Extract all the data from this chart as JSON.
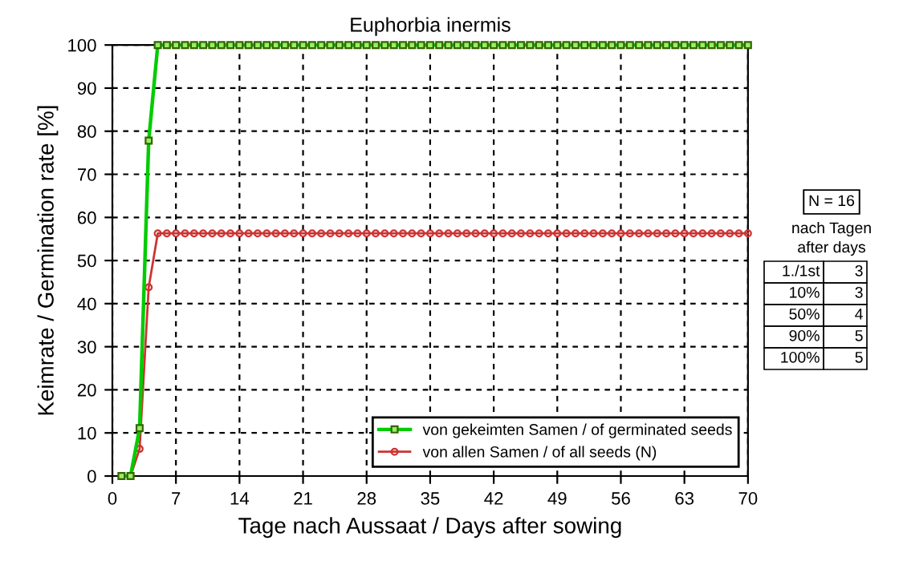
{
  "chart_data": {
    "type": "line",
    "title": "Euphorbia inermis",
    "xlabel": "Tage nach Aussaat / Days after sowing",
    "ylabel": "Keimrate / Germination rate [%]",
    "x": [
      1,
      2,
      3,
      4,
      5,
      6,
      7,
      8,
      9,
      10,
      11,
      12,
      13,
      14,
      15,
      16,
      17,
      18,
      19,
      20,
      21,
      22,
      23,
      24,
      25,
      26,
      27,
      28,
      29,
      30,
      31,
      32,
      33,
      34,
      35,
      36,
      37,
      38,
      39,
      40,
      41,
      42,
      43,
      44,
      45,
      46,
      47,
      48,
      49,
      50,
      51,
      52,
      53,
      54,
      55,
      56,
      57,
      58,
      59,
      60,
      61,
      62,
      63,
      64,
      65,
      66,
      67,
      68,
      69,
      70
    ],
    "series": [
      {
        "name": "von gekeimten Samen / of germinated seeds",
        "color": "#00cc00",
        "marker": "square",
        "values": [
          0,
          0,
          11.1,
          77.8,
          100,
          100,
          100,
          100,
          100,
          100,
          100,
          100,
          100,
          100,
          100,
          100,
          100,
          100,
          100,
          100,
          100,
          100,
          100,
          100,
          100,
          100,
          100,
          100,
          100,
          100,
          100,
          100,
          100,
          100,
          100,
          100,
          100,
          100,
          100,
          100,
          100,
          100,
          100,
          100,
          100,
          100,
          100,
          100,
          100,
          100,
          100,
          100,
          100,
          100,
          100,
          100,
          100,
          100,
          100,
          100,
          100,
          100,
          100,
          100,
          100,
          100,
          100,
          100,
          100,
          100
        ]
      },
      {
        "name": "von allen Samen / of all seeds (N)",
        "color": "#cc3333",
        "marker": "circle",
        "values": [
          0,
          0,
          6.3,
          43.8,
          56.3,
          56.3,
          56.3,
          56.3,
          56.3,
          56.3,
          56.3,
          56.3,
          56.3,
          56.3,
          56.3,
          56.3,
          56.3,
          56.3,
          56.3,
          56.3,
          56.3,
          56.3,
          56.3,
          56.3,
          56.3,
          56.3,
          56.3,
          56.3,
          56.3,
          56.3,
          56.3,
          56.3,
          56.3,
          56.3,
          56.3,
          56.3,
          56.3,
          56.3,
          56.3,
          56.3,
          56.3,
          56.3,
          56.3,
          56.3,
          56.3,
          56.3,
          56.3,
          56.3,
          56.3,
          56.3,
          56.3,
          56.3,
          56.3,
          56.3,
          56.3,
          56.3,
          56.3,
          56.3,
          56.3,
          56.3,
          56.3,
          56.3,
          56.3,
          56.3,
          56.3,
          56.3,
          56.3,
          56.3,
          56.3,
          56.3
        ]
      }
    ],
    "xlim": [
      0,
      70
    ],
    "xticks": [
      0,
      7,
      14,
      21,
      28,
      35,
      42,
      49,
      56,
      63,
      70
    ],
    "ylim": [
      0,
      100
    ],
    "yticks": [
      0,
      10,
      20,
      30,
      40,
      50,
      60,
      70,
      80,
      90,
      100
    ],
    "grid": true,
    "legend": "bottom right",
    "line_style": "solid",
    "annotations": [
      "N = 16",
      "nach Tagen",
      "after days",
      "1./1st",
      "3",
      "10%",
      "3",
      "50%",
      "4",
      "90%",
      "5",
      "100%",
      "5"
    ]
  }
}
